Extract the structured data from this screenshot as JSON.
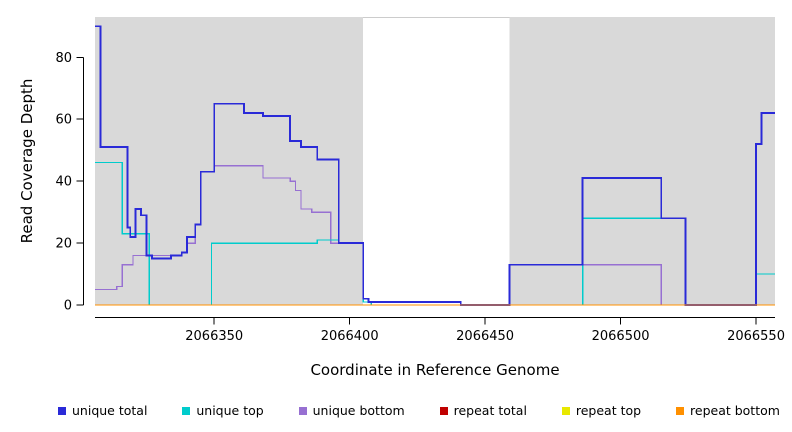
{
  "figure": {
    "background": "#ffffff"
  },
  "chart_data": {
    "type": "line",
    "subtype": "step",
    "title": "",
    "xlabel": "Coordinate in Reference Genome",
    "ylabel": "Read Coverage Depth",
    "xlim": [
      2066306,
      2066557
    ],
    "ylim": [
      0,
      93
    ],
    "x_ticks": [
      2066350,
      2066400,
      2066450,
      2066500,
      2066550
    ],
    "y_ticks": [
      0,
      20,
      40,
      60,
      80
    ],
    "grid": false,
    "legend_position": "bottom",
    "shaded_regions": [
      {
        "x0": 2066306,
        "x1": 2066405,
        "color": "#d9d9d9"
      },
      {
        "x0": 2066459,
        "x1": 2066557,
        "color": "#d9d9d9"
      }
    ],
    "series": [
      {
        "name": "repeat total",
        "color": "#c00000",
        "width": 1.3,
        "points": [
          [
            2066306,
            0
          ],
          [
            2066557,
            0
          ]
        ]
      },
      {
        "name": "repeat top",
        "color": "#e8e800",
        "width": 1.3,
        "points": [
          [
            2066306,
            0
          ],
          [
            2066557,
            0
          ]
        ]
      },
      {
        "name": "unique bottom",
        "color": "#9770d2",
        "width": 1.3,
        "points": [
          [
            2066306,
            5
          ],
          [
            2066314,
            6
          ],
          [
            2066316,
            13
          ],
          [
            2066320,
            16
          ],
          [
            2066335,
            16
          ],
          [
            2066338,
            17
          ],
          [
            2066340,
            20
          ],
          [
            2066343,
            26
          ],
          [
            2066345,
            43
          ],
          [
            2066350,
            45
          ],
          [
            2066368,
            41
          ],
          [
            2066378,
            40
          ],
          [
            2066380,
            37
          ],
          [
            2066382,
            31
          ],
          [
            2066386,
            30
          ],
          [
            2066393,
            20
          ],
          [
            2066405,
            1
          ],
          [
            2066408,
            0
          ],
          [
            2066459,
            13
          ],
          [
            2066515,
            0
          ],
          [
            2066557,
            0
          ]
        ]
      },
      {
        "name": "unique top",
        "color": "#00cccc",
        "width": 1.3,
        "points": [
          [
            2066306,
            46
          ],
          [
            2066316,
            23
          ],
          [
            2066326,
            0
          ],
          [
            2066349,
            20
          ],
          [
            2066388,
            21
          ],
          [
            2066396,
            20
          ],
          [
            2066405,
            1
          ],
          [
            2066408,
            0
          ],
          [
            2066486,
            28
          ],
          [
            2066524,
            0
          ],
          [
            2066550,
            10
          ],
          [
            2066557,
            10
          ]
        ]
      },
      {
        "name": "unique total",
        "color": "#2a2ad8",
        "width": 1.8,
        "points": [
          [
            2066306,
            90
          ],
          [
            2066308,
            51
          ],
          [
            2066318,
            25
          ],
          [
            2066319,
            22
          ],
          [
            2066321,
            31
          ],
          [
            2066323,
            29
          ],
          [
            2066325,
            16
          ],
          [
            2066327,
            15
          ],
          [
            2066334,
            16
          ],
          [
            2066338,
            17
          ],
          [
            2066340,
            22
          ],
          [
            2066343,
            26
          ],
          [
            2066345,
            43
          ],
          [
            2066350,
            65
          ],
          [
            2066361,
            62
          ],
          [
            2066368,
            61
          ],
          [
            2066378,
            53
          ],
          [
            2066382,
            51
          ],
          [
            2066388,
            47
          ],
          [
            2066396,
            20
          ],
          [
            2066405,
            2
          ],
          [
            2066407,
            1
          ],
          [
            2066437,
            1
          ],
          [
            2066441,
            0
          ],
          [
            2066459,
            13
          ],
          [
            2066486,
            41
          ],
          [
            2066515,
            28
          ],
          [
            2066524,
            0
          ],
          [
            2066550,
            52
          ],
          [
            2066552,
            62
          ],
          [
            2066557,
            62
          ]
        ]
      },
      {
        "name": "repeat bottom",
        "color": "#ff9000",
        "width": 1.3,
        "points": [
          [
            2066306,
            0
          ],
          [
            2066557,
            0
          ]
        ]
      }
    ],
    "legend": [
      {
        "label": "unique total",
        "color": "#2a2ad8"
      },
      {
        "label": "unique top",
        "color": "#00cccc"
      },
      {
        "label": "unique bottom",
        "color": "#9770d2"
      },
      {
        "label": "repeat total",
        "color": "#c00000"
      },
      {
        "label": "repeat top",
        "color": "#e8e800"
      },
      {
        "label": "repeat bottom",
        "color": "#ff9000"
      }
    ]
  }
}
